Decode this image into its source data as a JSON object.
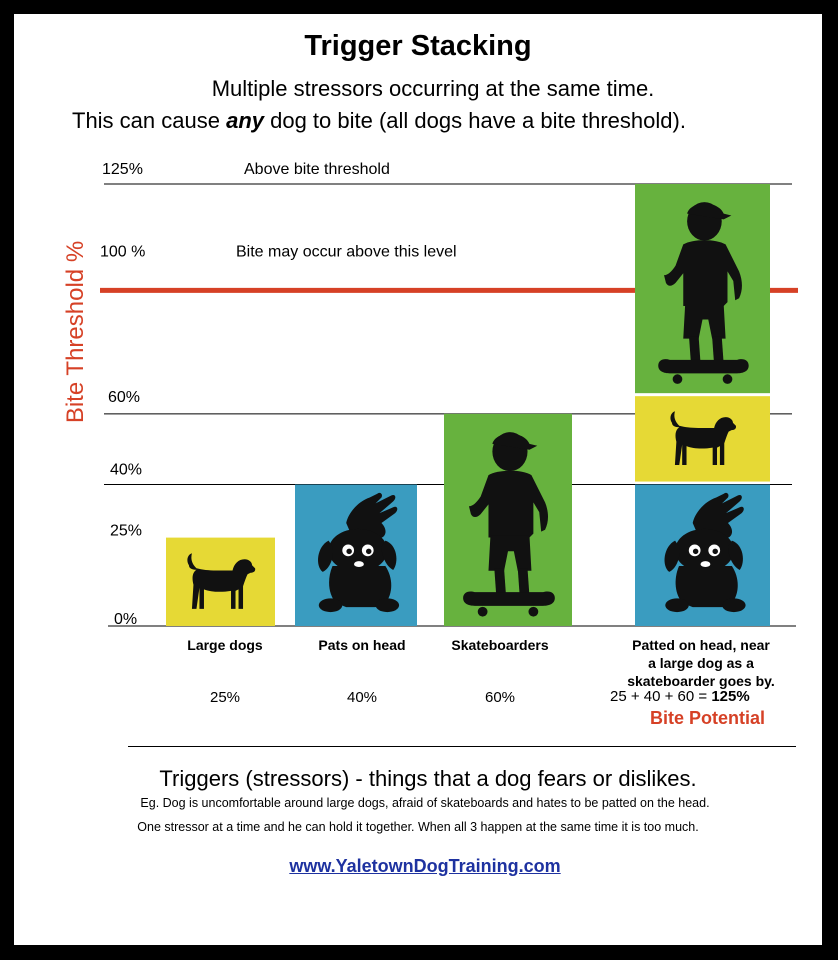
{
  "header": {
    "title": "Trigger Stacking",
    "subtitle_line1": "Multiple stressors occurring at the same time.",
    "subtitle_line2_pre": "This can cause ",
    "subtitle_line2_em": "any",
    "subtitle_line2_post": " dog to bite (all dogs have a bite threshold)."
  },
  "chart_data": {
    "type": "bar",
    "ylabel": "Bite Threshold %",
    "ylim": [
      0,
      125
    ],
    "yticks": [
      {
        "value": 0,
        "label": "0%"
      },
      {
        "value": 25,
        "label": "25%"
      },
      {
        "value": 40,
        "label": "40%"
      },
      {
        "value": 60,
        "label": "60%"
      },
      {
        "value": 100,
        "label": "100 %"
      },
      {
        "value": 125,
        "label": "125%"
      }
    ],
    "grid_lines_at": [
      40,
      60,
      125
    ],
    "threshold": {
      "value": 100,
      "color": "#d64126"
    },
    "annotations": [
      {
        "y": 125,
        "text": "Above bite threshold"
      },
      {
        "y": 100,
        "text": "Bite may occur above this level"
      }
    ],
    "categories": [
      "Large dogs",
      "Pats on head",
      "Skateboarders",
      "Patted on head, near a large dog as a skateboarder goes by."
    ],
    "category_lines": [
      [
        "Large dogs"
      ],
      [
        "Pats on head"
      ],
      [
        "Skateboarders"
      ],
      [
        "Patted on head, near",
        "a large dog as a",
        "skateboarder goes by."
      ]
    ],
    "value_labels": [
      "25%",
      "40%",
      "60%"
    ],
    "bars": [
      {
        "category": "Large dogs",
        "segments": [
          {
            "name": "Large dogs",
            "value": 25,
            "color": "#e6d935",
            "icon": "dog-icon"
          }
        ]
      },
      {
        "category": "Pats on head",
        "segments": [
          {
            "name": "Pats on head",
            "value": 40,
            "color": "#3a9cc0",
            "icon": "pat-on-head-icon"
          }
        ]
      },
      {
        "category": "Skateboarders",
        "segments": [
          {
            "name": "Skateboarders",
            "value": 60,
            "color": "#67b23e",
            "icon": "skateboarder-icon"
          }
        ]
      },
      {
        "category": "Patted on head, near a large dog as a skateboarder goes by.",
        "segments": [
          {
            "name": "Pats on head",
            "value": 40,
            "color": "#3a9cc0",
            "icon": "pat-on-head-icon"
          },
          {
            "name": "Large dogs",
            "value": 25,
            "color": "#e6d935",
            "icon": "dog-icon"
          },
          {
            "name": "Skateboarders",
            "value": 60,
            "color": "#67b23e",
            "icon": "skateboarder-icon"
          }
        ]
      }
    ],
    "total": {
      "formula_pre": "25 + 40 + 60 = ",
      "formula_total": "125%",
      "label": "Bite Potential"
    }
  },
  "footer": {
    "triggers_heading": "Triggers (stressors)  - things that a dog fears or dislikes.",
    "example_line1": "Eg. Dog is uncomfortable around large dogs, afraid of skateboards and hates to be patted on the head.",
    "example_line2": "One stressor at a time and he can hold it together. When all 3 happen at the same time it is too much.",
    "link": "www.YaletownDogTraining.com"
  }
}
